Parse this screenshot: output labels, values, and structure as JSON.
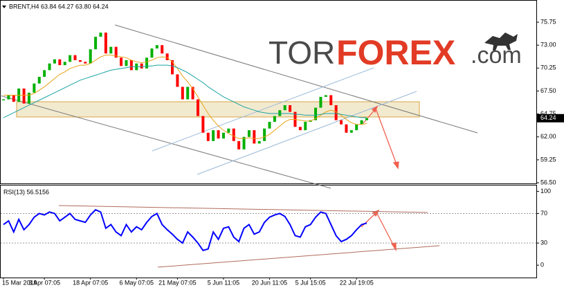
{
  "chart_data": [
    {
      "type": "line",
      "title": "BRENT,H4 63.84 64.27 63.80 64.24",
      "watermark": [
        "TOR",
        "FOREX",
        ".com"
      ],
      "categories": [
        "15 Mar 2019",
        null,
        null,
        null,
        null,
        null,
        null,
        null,
        "3 Apr 07:05",
        null,
        null,
        null,
        null,
        null,
        null,
        null,
        null,
        "18 Apr 07:05",
        null,
        null,
        null,
        null,
        null,
        null,
        null,
        null,
        "6 May 07:05",
        null,
        null,
        null,
        null,
        null,
        null,
        null,
        "21 May 07:05",
        null,
        null,
        null,
        null,
        null,
        null,
        null,
        null,
        "5 Jun 11:05",
        null,
        null,
        null,
        null,
        null,
        null,
        null,
        null,
        "20 Jun 11:05",
        null,
        null,
        null,
        null,
        null,
        null,
        null,
        "5 Jul 15:05",
        null,
        null,
        null,
        null,
        null,
        null,
        null,
        null,
        "22 Jul 19:05",
        null,
        null
      ],
      "up_color": "#00b000",
      "down_color": "#ff0000",
      "series": [
        {
          "values": [
            66.5,
            67.0,
            66.2,
            67.8,
            66.0,
            67.3,
            68.4,
            69.2,
            70.0,
            70.8,
            71.3,
            70.6,
            71.0,
            71.8,
            71.2,
            71.0,
            70.8,
            72.5,
            74.0,
            74.5,
            72.0,
            72.8,
            71.5,
            70.5,
            71.2,
            70.0,
            70.8,
            70.2,
            71.5,
            72.6,
            73.0,
            72.0,
            71.2,
            69.5,
            68.0,
            66.5,
            68.0,
            66.5,
            64.5,
            62.5,
            61.5,
            62.8,
            61.8,
            62.5,
            63.0,
            61.5,
            60.5,
            62.0,
            62.8,
            61.2,
            61.5,
            63.0,
            63.8,
            64.5,
            65.2,
            65.8,
            65.0,
            63.2,
            62.8,
            63.8,
            64.0,
            65.5,
            66.8,
            67.0,
            65.8,
            64.0,
            63.5,
            62.5,
            62.8,
            63.5,
            64.0,
            64.24
          ]
        },
        {
          "color": "#e8a317",
          "values": [
            67,
            67,
            67,
            67,
            67,
            67,
            67.2,
            67.6,
            68,
            68.5,
            69,
            69.5,
            69.8,
            70.2,
            70.4,
            70.6,
            70.6,
            70.8,
            71.2,
            71.6,
            71.8,
            71.8,
            71.7,
            71.6,
            71.5,
            71.2,
            71.0,
            70.9,
            71.0,
            71.2,
            71.5,
            71.6,
            71.5,
            71.0,
            70.2,
            69.3,
            68.6,
            67.8,
            66.8,
            65.8,
            64.8,
            64.0,
            63.3,
            62.8,
            62.4,
            62.1,
            61.8,
            61.8,
            61.9,
            61.8,
            61.8,
            62.0,
            62.3,
            62.8,
            63.3,
            63.8,
            64.1,
            64.1,
            64.0,
            63.9,
            63.9,
            64.2,
            64.6,
            65.0,
            65.2,
            65.0,
            64.6,
            64.1,
            63.7,
            63.5,
            63.5,
            63.6
          ]
        },
        {
          "color": "#1aa3a3",
          "values": [
            64.3,
            64.6,
            64.9,
            65.2,
            65.5,
            65.8,
            66.1,
            66.4,
            66.7,
            67.0,
            67.3,
            67.6,
            67.9,
            68.2,
            68.5,
            68.8,
            69.0,
            69.2,
            69.4,
            69.6,
            69.8,
            70.0,
            70.1,
            70.2,
            70.3,
            70.4,
            70.4,
            70.4,
            70.5,
            70.5,
            70.6,
            70.6,
            70.6,
            70.5,
            70.3,
            70.0,
            69.7,
            69.3,
            68.9,
            68.5,
            68.0,
            67.6,
            67.2,
            66.8,
            66.5,
            66.2,
            65.9,
            65.6,
            65.4,
            65.2,
            65.0,
            64.9,
            64.8,
            64.8,
            64.8,
            64.8,
            64.8,
            64.7,
            64.7,
            64.6,
            64.6,
            64.6,
            64.7,
            64.8,
            64.8,
            64.8,
            64.7,
            64.6,
            64.5,
            64.4,
            64.3,
            64.3
          ]
        }
      ],
      "last_value": 64.24,
      "ylim": [
        56.42,
        78.33
      ],
      "yticks": [
        75.75,
        {
          "value": 73,
          "label": "73.00"
        },
        70.25,
        {
          "value": 67.5,
          "label": "67.50"
        },
        64.75,
        {
          "value": 62,
          "label": "62.00"
        },
        59.25,
        {
          "value": 56.5,
          "label": "56.50"
        }
      ]
    },
    {
      "type": "line",
      "title": "RSI(13) 56.5156",
      "color": "#0000ff",
      "values": [
        55,
        60,
        45,
        62,
        48,
        55,
        65,
        70,
        68,
        72,
        70,
        60,
        65,
        70,
        62,
        60,
        58,
        68,
        75,
        72,
        50,
        55,
        45,
        40,
        55,
        45,
        52,
        48,
        58,
        66,
        70,
        55,
        48,
        42,
        35,
        30,
        45,
        38,
        30,
        20,
        22,
        45,
        35,
        50,
        52,
        38,
        32,
        50,
        55,
        42,
        45,
        58,
        65,
        68,
        70,
        66,
        55,
        40,
        38,
        52,
        55,
        65,
        72,
        70,
        55,
        40,
        32,
        35,
        40,
        48,
        55,
        57
      ],
      "ylim": [
        -16.7,
        107.9
      ],
      "yticks": [
        100,
        70,
        30,
        0
      ]
    }
  ]
}
